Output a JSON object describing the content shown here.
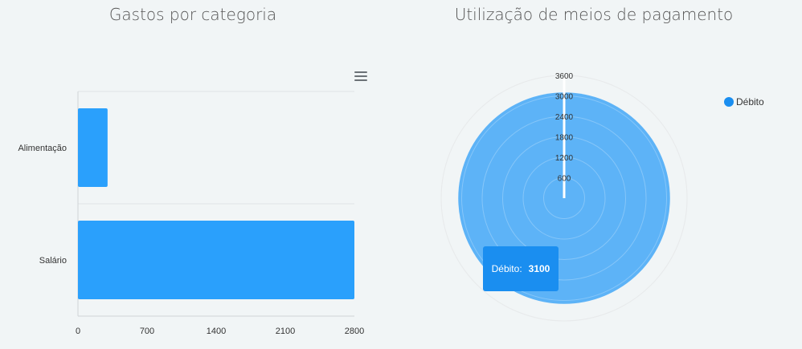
{
  "charts": {
    "left": {
      "title": "Gastos por categoria"
    },
    "right": {
      "title": "Utilização de meios de pagamento"
    }
  },
  "colors": {
    "bar": "#2aa0fc",
    "polar_fill": "#5db3f7",
    "legend_dot": "#1a8ef0",
    "tooltip_bg": "#1a8ef0",
    "grid": "#e0e3e5"
  },
  "icons": {
    "menu": "hamburger-menu-icon"
  },
  "tooltip": {
    "label": "Débito:",
    "value": "3100"
  },
  "legend": {
    "items": [
      "Débito"
    ]
  },
  "chart_data": [
    {
      "type": "bar",
      "orientation": "horizontal",
      "title": "Gastos por categoria",
      "categories": [
        "Alimentação",
        "Salário"
      ],
      "values": [
        300,
        2800
      ],
      "xlim": [
        0,
        2800
      ],
      "xticks": [
        "0",
        "700",
        "1400",
        "2100",
        "2800"
      ],
      "grid": true
    },
    {
      "type": "polar_area",
      "title": "Utilização de meios de pagamento",
      "categories": [
        "Débito"
      ],
      "values": [
        3100
      ],
      "rlim": [
        0,
        3600
      ],
      "rticks": [
        "600",
        "1200",
        "1800",
        "2400",
        "3000",
        "3600"
      ],
      "legend_position": "top-right"
    }
  ]
}
